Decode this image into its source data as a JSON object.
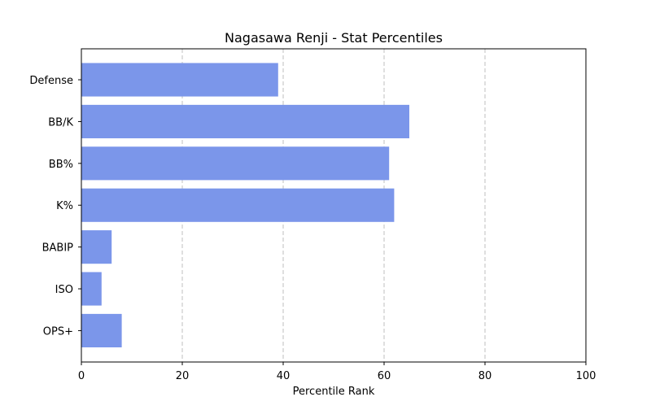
{
  "chart_data": {
    "type": "bar",
    "orientation": "horizontal",
    "title": "Nagasawa Renji - Stat Percentiles",
    "xlabel": "Percentile Rank",
    "ylabel": "",
    "xlim": [
      0,
      100
    ],
    "xticks": [
      0,
      20,
      40,
      60,
      80,
      100
    ],
    "categories": [
      "OPS+",
      "ISO",
      "BABIP",
      "K%",
      "BB%",
      "BB/K",
      "Defense"
    ],
    "values": [
      8,
      4,
      6,
      62,
      61,
      65,
      39
    ],
    "bar_color": "#7b96ea",
    "grid": {
      "x": true,
      "y": false,
      "style": "dashed"
    },
    "legend": "none"
  }
}
